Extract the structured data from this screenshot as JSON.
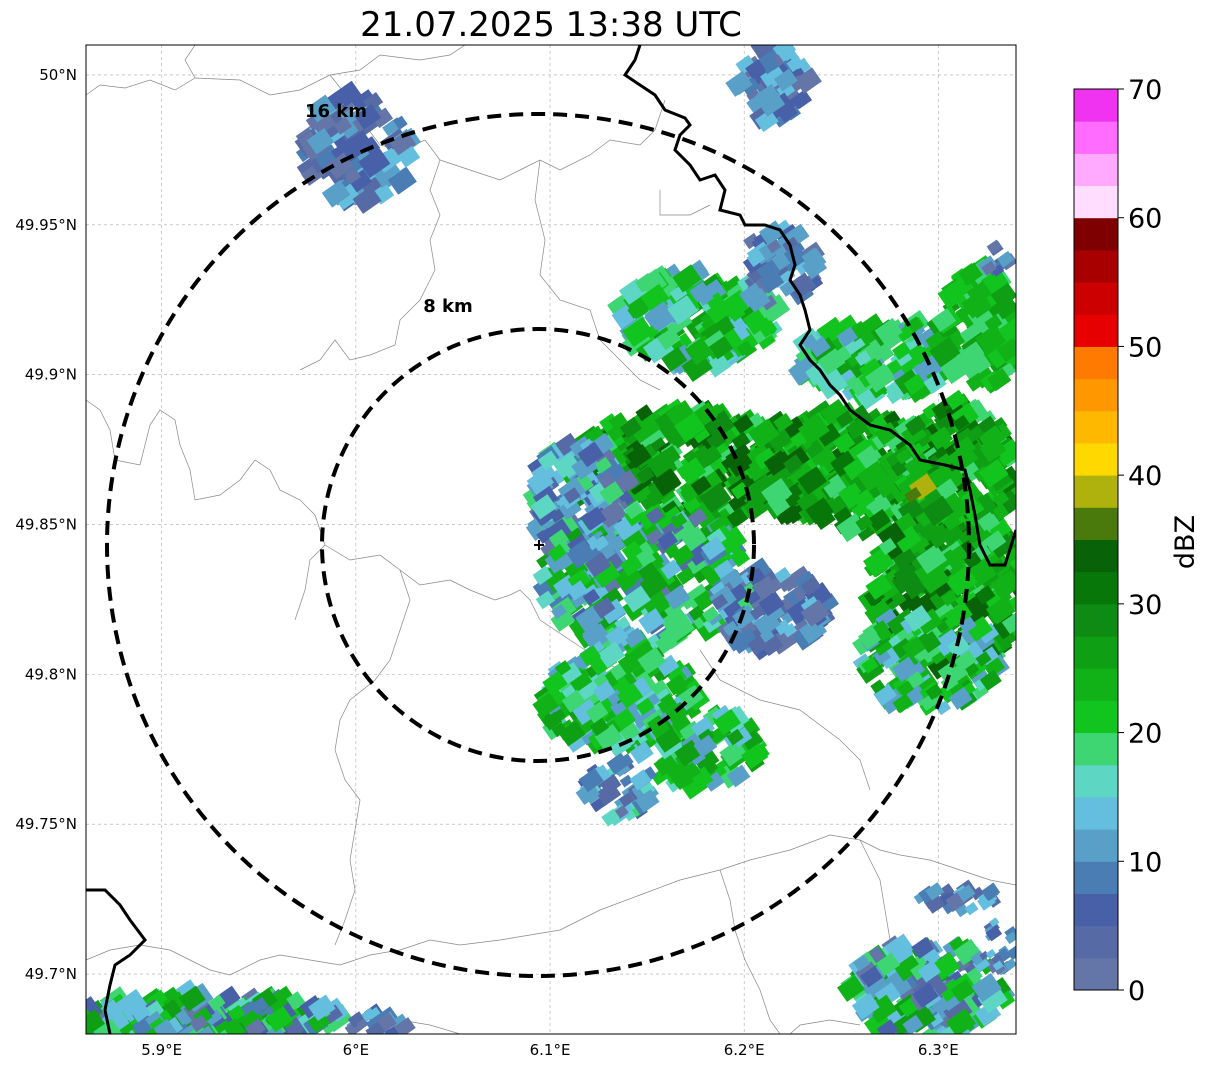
{
  "title": "21.07.2025 13:38 UTC",
  "map": {
    "lon_range": [
      5.861,
      6.34
    ],
    "lat_range": [
      49.68,
      50.01
    ],
    "center": {
      "lon": 6.095,
      "lat": 49.843
    },
    "x_ticks": [
      {
        "value": 5.9,
        "label": "5.9°E"
      },
      {
        "value": 6.0,
        "label": "6°E"
      },
      {
        "value": 6.1,
        "label": "6.1°E"
      },
      {
        "value": 6.2,
        "label": "6.2°E"
      },
      {
        "value": 6.3,
        "label": "6.3°E"
      }
    ],
    "y_ticks": [
      {
        "value": 50.0,
        "label": "50°N"
      },
      {
        "value": 49.95,
        "label": "49.95°N"
      },
      {
        "value": 49.9,
        "label": "49.9°N"
      },
      {
        "value": 49.85,
        "label": "49.85°N"
      },
      {
        "value": 49.8,
        "label": "49.8°N"
      },
      {
        "value": 49.75,
        "label": "49.75°N"
      },
      {
        "value": 49.7,
        "label": "49.7°N"
      }
    ],
    "range_rings": [
      {
        "radius_km": 8,
        "label": "8 km"
      },
      {
        "radius_km": 16,
        "label": "16 km"
      }
    ],
    "grid": true
  },
  "colorbar": {
    "label": "dBZ",
    "min": 0,
    "max": 70,
    "ticks": [
      {
        "value": 0,
        "label": "0"
      },
      {
        "value": 10,
        "label": "10"
      },
      {
        "value": 20,
        "label": "20"
      },
      {
        "value": 30,
        "label": "30"
      },
      {
        "value": 40,
        "label": "40"
      },
      {
        "value": 50,
        "label": "50"
      },
      {
        "value": 60,
        "label": "60"
      },
      {
        "value": 70,
        "label": "70"
      }
    ],
    "colors": [
      "#6475a8",
      "#566aa5",
      "#4860a8",
      "#4a7db3",
      "#58a0c8",
      "#64bede",
      "#5dd6c4",
      "#3ed672",
      "#12c41e",
      "#10b218",
      "#0f9f14",
      "#0e8b12",
      "#077709",
      "#086208",
      "#4a7a0c",
      "#afb10c",
      "#ffd800",
      "#ffb800",
      "#ff9800",
      "#ff7a00",
      "#e60000",
      "#cc0000",
      "#a80000",
      "#7f0000",
      "#ffddff",
      "#ffaaff",
      "#ff6cff",
      "#f033f0"
    ]
  }
}
